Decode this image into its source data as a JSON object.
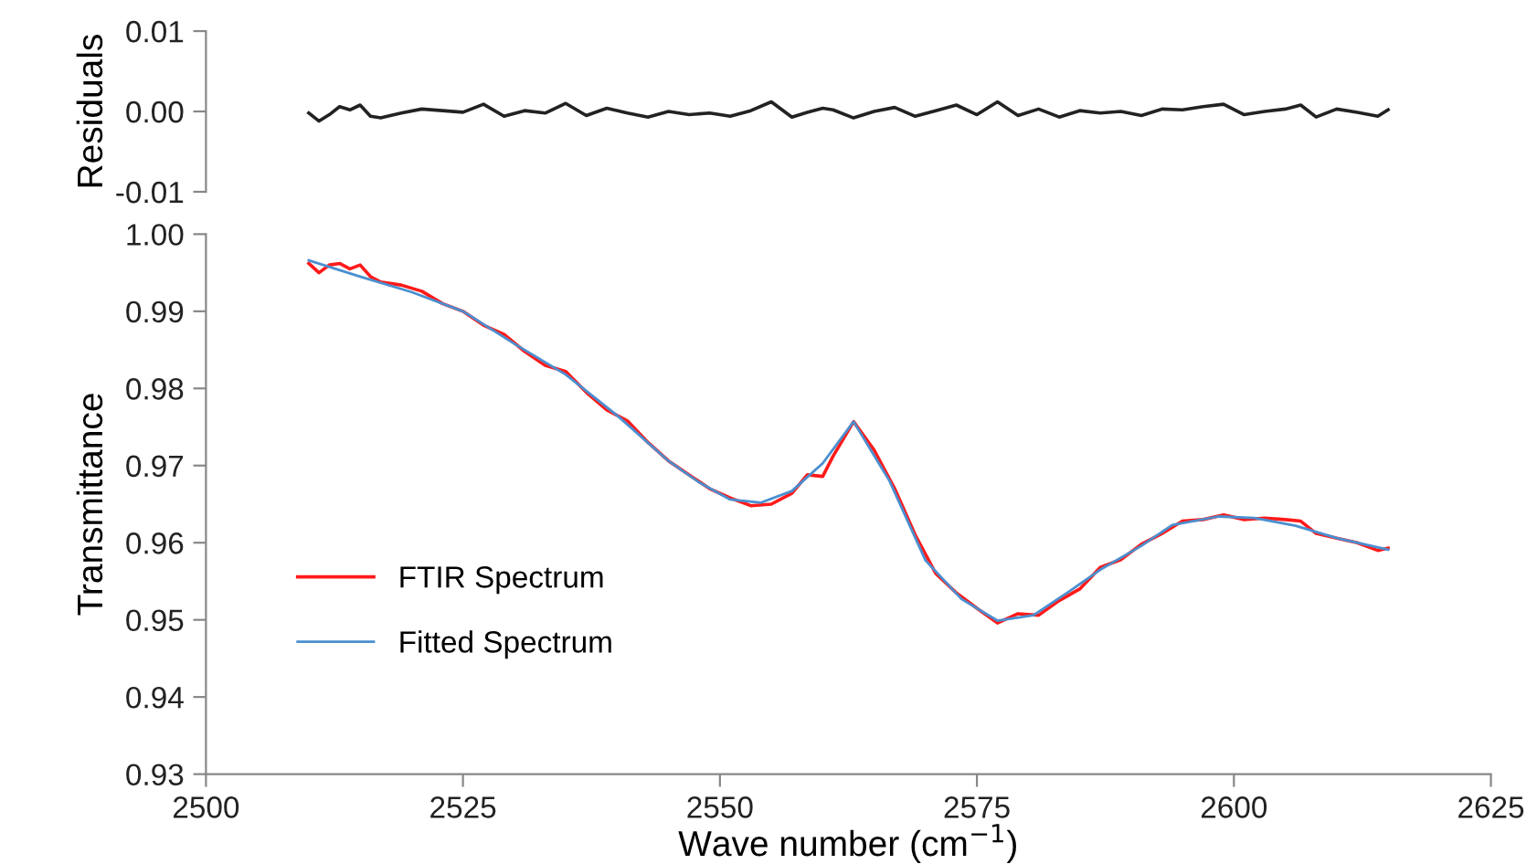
{
  "chart_data": [
    {
      "type": "line",
      "ylabel": "Residuals",
      "xlim": [
        2500,
        2625
      ],
      "ylim": [
        -0.01,
        0.01
      ],
      "yticks": [
        {
          "value": -0.01,
          "label": "-0.01"
        },
        {
          "value": 0,
          "label": "0.00"
        },
        {
          "value": 0.01,
          "label": "0.01"
        }
      ],
      "tick_labels": "y",
      "grid": false,
      "legend": false,
      "series": [
        {
          "color": "#222222",
          "x": [
            2510,
            2511,
            2512,
            2513,
            2514,
            2515,
            2516,
            2517,
            2519,
            2521,
            2523,
            2525,
            2527,
            2529,
            2531,
            2533,
            2535,
            2537,
            2539,
            2541,
            2543,
            2545,
            2547,
            2549,
            2551,
            2553,
            2555,
            2557,
            2558.5,
            2560,
            2561,
            2563,
            2565,
            2567,
            2569,
            2571,
            2573,
            2575,
            2577,
            2579,
            2581,
            2583,
            2585,
            2587,
            2589,
            2591,
            2593,
            2595,
            2597,
            2599,
            2601,
            2603,
            2605,
            2606.5,
            2608,
            2610,
            2612,
            2614,
            2615
          ],
          "values": [
            -0.0002,
            -0.0012,
            -0.0004,
            0.0006,
            0.0002,
            0.0008,
            -0.0006,
            -0.0008,
            -0.0002,
            0.0003,
            0.0001,
            -0.0001,
            0.0009,
            -0.0006,
            0.0001,
            -0.0002,
            0.001,
            -0.0005,
            0.0004,
            -0.0002,
            -0.0007,
            0.0,
            -0.0004,
            -0.0002,
            -0.0006,
            0.0001,
            0.0012,
            -0.0007,
            -0.0001,
            0.0004,
            0.0002,
            -0.0008,
            0.0,
            0.0005,
            -0.0006,
            0.0001,
            0.0008,
            -0.0004,
            0.0012,
            -0.0005,
            0.0003,
            -0.0007,
            0.0001,
            -0.0002,
            0.0,
            -0.0005,
            0.0003,
            0.0002,
            0.0006,
            0.0009,
            -0.0004,
            0.0,
            0.0003,
            0.0008,
            -0.0007,
            0.0003,
            -0.0001,
            -0.0006,
            0.0002
          ]
        }
      ]
    },
    {
      "type": "line",
      "xlabel": "Wave number (cm$^{−1}$)",
      "ylabel": "Transmittance",
      "xlim": [
        2500,
        2625
      ],
      "ylim": [
        0.93,
        1.0
      ],
      "xticks": [
        2500,
        2525,
        2550,
        2575,
        2600,
        2625
      ],
      "yticks": [
        0.93,
        0.94,
        0.95,
        0.96,
        0.97,
        0.98,
        0.99,
        {
          "value": 1.0,
          "label": "1.00"
        }
      ],
      "grid": false,
      "legend": "left",
      "series": [
        {
          "name": "FTIR Spectrum",
          "color": "#ff1a1a",
          "x": [
            2510,
            2511,
            2512,
            2513,
            2514,
            2515,
            2516,
            2517,
            2519,
            2521,
            2523,
            2525,
            2527,
            2529,
            2531,
            2533,
            2535,
            2537,
            2539,
            2541,
            2543,
            2545,
            2547,
            2549,
            2551,
            2553,
            2555,
            2557,
            2558.5,
            2560,
            2561,
            2563,
            2565,
            2567,
            2569,
            2571,
            2573,
            2575,
            2577,
            2579,
            2581,
            2583,
            2585,
            2587,
            2589,
            2591,
            2593,
            2595,
            2597,
            2599,
            2601,
            2603,
            2605,
            2606.5,
            2608,
            2610,
            2612,
            2614,
            2615
          ],
          "values": [
            0.9962,
            0.995,
            0.996,
            0.9962,
            0.9955,
            0.996,
            0.9945,
            0.9938,
            0.9934,
            0.9926,
            0.991,
            0.99,
            0.9882,
            0.987,
            0.9848,
            0.983,
            0.9822,
            0.9795,
            0.9772,
            0.9758,
            0.973,
            0.9706,
            0.9688,
            0.967,
            0.9658,
            0.9648,
            0.965,
            0.9664,
            0.9688,
            0.9686,
            0.9712,
            0.9757,
            0.972,
            0.967,
            0.961,
            0.956,
            0.9535,
            0.9515,
            0.9496,
            0.9508,
            0.9506,
            0.9525,
            0.954,
            0.9568,
            0.9578,
            0.9598,
            0.9612,
            0.9628,
            0.963,
            0.9636,
            0.963,
            0.9632,
            0.963,
            0.9628,
            0.9612,
            0.9606,
            0.96,
            0.959,
            0.9593
          ]
        },
        {
          "name": "Fitted Spectrum",
          "color": "#4a8fd0",
          "x": [
            2510,
            2515,
            2520,
            2525,
            2530,
            2535,
            2540,
            2545,
            2548,
            2551,
            2554,
            2557,
            2560,
            2563,
            2566.5,
            2570,
            2573.5,
            2577,
            2580.5,
            2584,
            2587,
            2591,
            2594,
            2598.5,
            2602,
            2606,
            2610,
            2615
          ],
          "values": [
            0.9966,
            0.9945,
            0.9925,
            0.99,
            0.9858,
            0.9818,
            0.9765,
            0.9706,
            0.9678,
            0.9656,
            0.9652,
            0.9667,
            0.9703,
            0.9757,
            0.968,
            0.9577,
            0.9527,
            0.9499,
            0.9506,
            0.9537,
            0.9565,
            0.9596,
            0.9623,
            0.9634,
            0.9632,
            0.9622,
            0.9606,
            0.9591
          ]
        }
      ]
    }
  ]
}
